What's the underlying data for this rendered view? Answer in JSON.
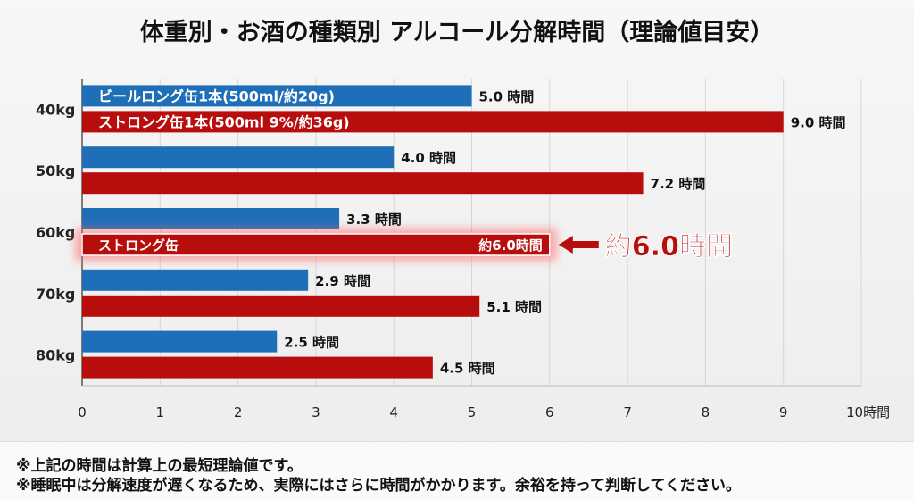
{
  "title": "体重別・お酒の種類別 アルコール分解時間（理論値目安）",
  "chart_data": {
    "type": "bar",
    "orientation": "horizontal",
    "categories": [
      "40kg",
      "50kg",
      "60kg",
      "70kg",
      "80kg"
    ],
    "series": [
      {
        "name": "ビールロング缶1本(500ml/約20g)",
        "color": "#1f6fb8",
        "values": [
          5.0,
          4.0,
          3.3,
          2.9,
          2.5
        ],
        "labels": [
          "5.0 時間",
          "4.0 時間",
          "3.3 時間",
          "2.9 時間",
          "2.5 時間"
        ]
      },
      {
        "name": "ストロング缶1本(500ml 9%/約36g)",
        "color": "#b80d0d",
        "values": [
          9.0,
          7.2,
          6.0,
          5.1,
          4.5
        ],
        "labels": [
          "9.0 時間",
          "7.2 時間",
          "約6.0時間",
          "5.1 時間",
          "4.5 時間"
        ]
      }
    ],
    "xlim": [
      0,
      10
    ],
    "xticks": [
      "0",
      "1",
      "2",
      "3",
      "4",
      "5",
      "6",
      "7",
      "8",
      "9",
      "10時間"
    ],
    "grid": true,
    "highlight": {
      "category": "60kg",
      "bar_label": "ストロング缶",
      "callout": "約6.0時間"
    }
  },
  "notes": [
    "※上記の時間は計算上の最短理論値です。",
    "※睡眠中は分解速度が遅くなるため、実際にはさらに時間がかかります。余裕を持って判断してください。"
  ]
}
